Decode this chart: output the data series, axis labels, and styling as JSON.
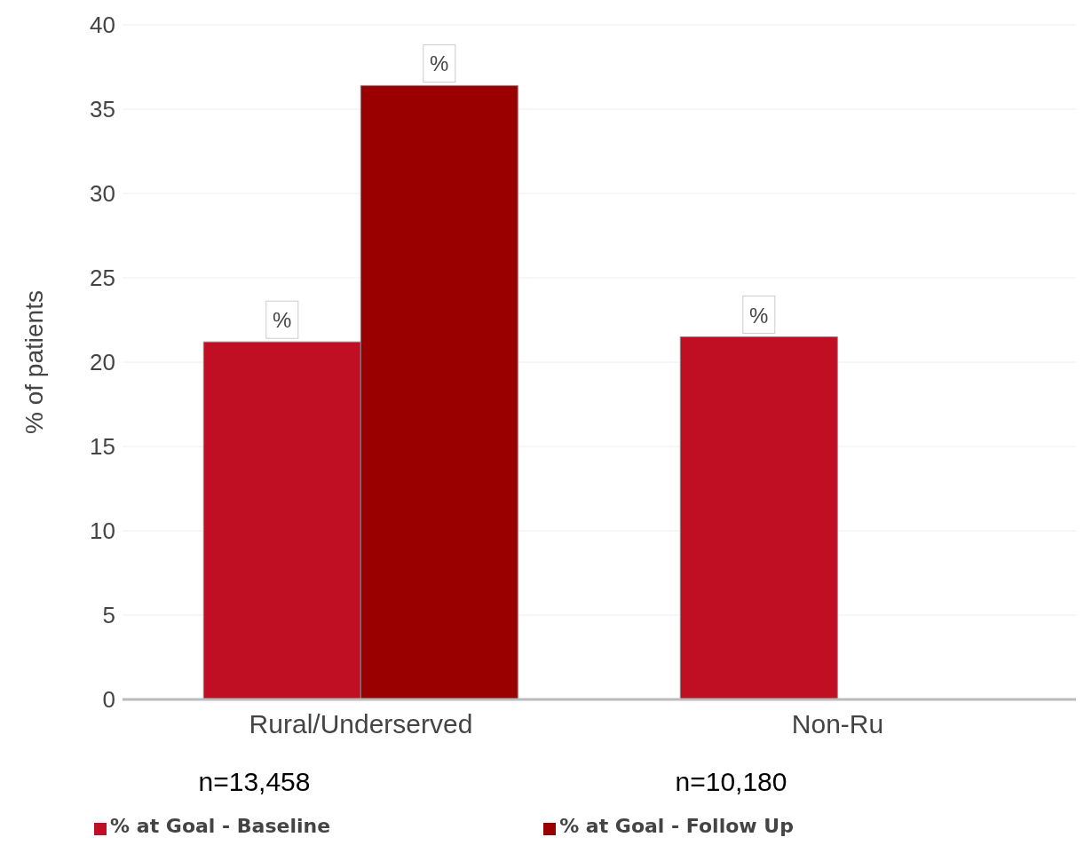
{
  "chart_data": {
    "type": "bar",
    "ylabel": "% of patients",
    "categories": [
      "Rural/Underserved",
      "Non-Ru"
    ],
    "series": [
      {
        "name": "% at Goal - Baseline",
        "color": "#c00f22",
        "values": [
          21.2,
          21.5
        ],
        "value_labels": [
          "%",
          "%"
        ]
      },
      {
        "name": "% at Goal - Follow Up",
        "color": "#9b0000",
        "values": [
          36.4,
          null
        ],
        "value_labels": [
          "%",
          null
        ]
      }
    ],
    "ylim": [
      0,
      40
    ],
    "yticks": [
      0,
      5,
      10,
      15,
      20,
      25,
      30,
      35,
      40
    ],
    "grid": "y",
    "legend": "bottom",
    "annotations": [
      "n=13,458",
      "n=10,180"
    ]
  }
}
